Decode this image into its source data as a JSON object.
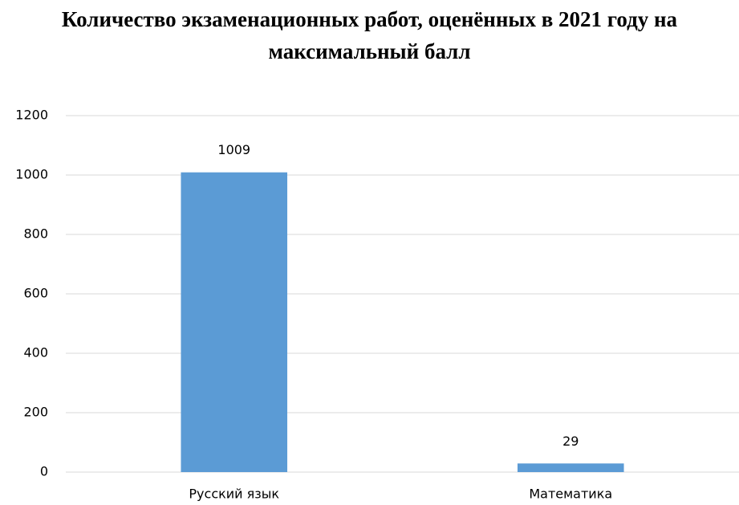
{
  "chart_data": {
    "type": "bar",
    "title": "Количество экзаменационных работ, оценённых в 2021 году на максимальный балл",
    "categories": [
      "Русский язык",
      "Математика"
    ],
    "values": [
      1009,
      29
    ],
    "color": "#5b9bd5",
    "ylim": [
      0,
      1200
    ],
    "yticks": [
      0,
      200,
      400,
      600,
      800,
      1000,
      1200
    ],
    "grid": true
  }
}
